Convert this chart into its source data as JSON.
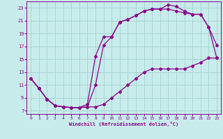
{
  "xlabel": "Windchill (Refroidissement éolien,°C)",
  "bg_color": "#c8ecec",
  "grid_color": "#aad4d4",
  "line_color": "#880088",
  "xlim": [
    -0.5,
    23.5
  ],
  "ylim": [
    6.5,
    24.0
  ],
  "xticks": [
    0,
    1,
    2,
    3,
    4,
    5,
    6,
    7,
    8,
    9,
    10,
    11,
    12,
    13,
    14,
    15,
    16,
    17,
    18,
    19,
    20,
    21,
    22,
    23
  ],
  "yticks": [
    7,
    9,
    11,
    13,
    15,
    17,
    19,
    21,
    23
  ],
  "line1_x": [
    0,
    1,
    2,
    3,
    4,
    5,
    6,
    7,
    8,
    9,
    10,
    11,
    12,
    13,
    14,
    15,
    16,
    17,
    18,
    19,
    20,
    21,
    22,
    23
  ],
  "line1_y": [
    12.0,
    10.5,
    8.8,
    7.8,
    7.6,
    7.5,
    7.5,
    7.6,
    7.6,
    8.0,
    9.0,
    10.0,
    11.0,
    12.0,
    13.0,
    13.5,
    13.5,
    13.5,
    13.5,
    13.5,
    14.0,
    14.5,
    15.2,
    15.2
  ],
  "line2_x": [
    0,
    1,
    2,
    3,
    4,
    5,
    6,
    7,
    8,
    9,
    10,
    11,
    12,
    13,
    14,
    15,
    16,
    17,
    18,
    19,
    20,
    21,
    22,
    23
  ],
  "line2_y": [
    12.0,
    10.5,
    8.8,
    7.8,
    7.6,
    7.5,
    7.5,
    7.6,
    11.0,
    17.2,
    18.5,
    20.8,
    21.2,
    21.8,
    22.5,
    22.8,
    22.8,
    22.8,
    22.5,
    22.2,
    22.0,
    22.0,
    20.0,
    17.2
  ],
  "line3_x": [
    0,
    1,
    2,
    3,
    4,
    5,
    6,
    7,
    8,
    9,
    10,
    11,
    12,
    13,
    14,
    15,
    16,
    17,
    18,
    19,
    20,
    21,
    22,
    23
  ],
  "line3_y": [
    12.0,
    10.5,
    8.8,
    7.8,
    7.6,
    7.5,
    7.5,
    8.0,
    15.5,
    18.5,
    18.5,
    20.8,
    21.2,
    21.8,
    22.5,
    22.8,
    22.8,
    23.5,
    23.2,
    22.5,
    22.0,
    22.0,
    20.0,
    15.2
  ]
}
